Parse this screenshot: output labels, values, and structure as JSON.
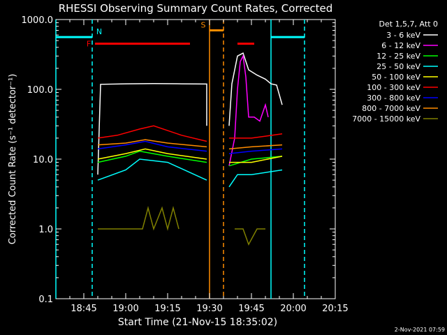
{
  "chart_data": {
    "type": "line",
    "title": "RHESSI Observing Summary Count Rates, Corrected",
    "xlabel": "Start Time (21-Nov-15 18:35:02)",
    "ylabel": "Corrected Count Rate (s⁻¹ detector⁻¹)",
    "y_scale": "log",
    "ylim": [
      0.1,
      1000.0
    ],
    "xlim": [
      "18:35",
      "20:15"
    ],
    "y_ticks": [
      "0.1",
      "1.0",
      "10.0",
      "100.0",
      "1000.0"
    ],
    "x_ticks": [
      "18:45",
      "19:00",
      "19:15",
      "19:30",
      "19:45",
      "20:00",
      "20:15"
    ],
    "legend_title": "Det 1,5,7, Att 0",
    "legend_position": "right",
    "timestamp": "2-Nov-2021 07:59",
    "series": [
      {
        "name": "3 - 6 keV",
        "color": "#ffffff",
        "segments": [
          {
            "x": [
              "18:50",
              "18:51",
              "19:00",
              "19:10",
              "19:20",
              "19:29",
              "19:29"
            ],
            "y": [
              6,
              118,
              120,
              121,
              120,
              119,
              30
            ]
          },
          {
            "x": [
              "19:37",
              "19:38",
              "19:40",
              "19:42",
              "19:44",
              "19:47",
              "19:50",
              "19:52",
              "19:54",
              "19:56"
            ],
            "y": [
              30,
              120,
              300,
              330,
              190,
              160,
              140,
              120,
              115,
              60
            ]
          }
        ]
      },
      {
        "name": "6 - 12 keV",
        "color": "#ff00ff",
        "segments": [
          {
            "x": [
              "19:37",
              "19:39",
              "19:40",
              "19:41",
              "19:42",
              "19:43",
              "19:44",
              "19:46",
              "19:48",
              "19:50",
              "19:51"
            ],
            "y": [
              8,
              20,
              100,
              250,
              300,
              150,
              40,
              40,
              35,
              60,
              40
            ]
          }
        ]
      },
      {
        "name": "12 - 25 keV",
        "color": "#00ff00",
        "segments": [
          {
            "x": [
              "18:50",
              "19:00",
              "19:05",
              "19:15",
              "19:29"
            ],
            "y": [
              9,
              11,
              13,
              11,
              9
            ]
          },
          {
            "x": [
              "19:37",
              "19:45",
              "19:56"
            ],
            "y": [
              8,
              10,
              11
            ]
          }
        ]
      },
      {
        "name": "25 - 50 keV",
        "color": "#00ffff",
        "segments": [
          {
            "x": [
              "18:50",
              "19:00",
              "19:05",
              "19:15",
              "19:29"
            ],
            "y": [
              5,
              7,
              10,
              9,
              5
            ]
          },
          {
            "x": [
              "19:37",
              "19:40",
              "19:45",
              "19:56"
            ],
            "y": [
              4,
              6,
              6,
              7
            ]
          }
        ]
      },
      {
        "name": "50 - 100 keV",
        "color": "#ffff00",
        "segments": [
          {
            "x": [
              "18:50",
              "19:00",
              "19:07",
              "19:15",
              "19:29"
            ],
            "y": [
              10,
              12,
              14,
              12,
              10
            ]
          },
          {
            "x": [
              "19:37",
              "19:45",
              "19:56"
            ],
            "y": [
              9,
              9,
              11
            ]
          }
        ]
      },
      {
        "name": "100 - 300 keV",
        "color": "#ff0000",
        "segments": [
          {
            "x": [
              "18:50",
              "18:57",
              "19:05",
              "19:10",
              "19:20",
              "19:29"
            ],
            "y": [
              20,
              22,
              27,
              30,
              22,
              18
            ]
          },
          {
            "x": [
              "19:37",
              "19:45",
              "19:56"
            ],
            "y": [
              20,
              20,
              23
            ]
          }
        ]
      },
      {
        "name": "300 - 800 keV",
        "color": "#0000ff",
        "segments": [
          {
            "x": [
              "18:50",
              "19:00",
              "19:07",
              "19:15",
              "19:29"
            ],
            "y": [
              14,
              16,
              18,
              15,
              13
            ]
          },
          {
            "x": [
              "19:37",
              "19:45",
              "19:56"
            ],
            "y": [
              12,
              13,
              14
            ]
          }
        ]
      },
      {
        "name": "800 - 7000 keV",
        "color": "#ff8c00",
        "segments": [
          {
            "x": [
              "18:50",
              "19:00",
              "19:07",
              "19:15",
              "19:29"
            ],
            "y": [
              16,
              17,
              19,
              17,
              15
            ]
          },
          {
            "x": [
              "19:37",
              "19:45",
              "19:56"
            ],
            "y": [
              14,
              15,
              16
            ]
          }
        ]
      },
      {
        "name": "7000 - 15000 keV",
        "color": "#808000",
        "segments": [
          {
            "x": [
              "18:50",
              "18:56",
              "19:00",
              "19:06",
              "19:08",
              "19:10",
              "19:13",
              "19:15",
              "19:17",
              "19:19"
            ],
            "y": [
              1,
              1,
              1,
              1,
              2,
              1,
              2,
              1,
              2,
              1
            ]
          },
          {
            "x": [
              "19:39",
              "19:42",
              "19:44",
              "19:47",
              "19:50"
            ],
            "y": [
              1,
              1,
              0.6,
              1,
              1
            ]
          }
        ]
      }
    ],
    "flags": [
      {
        "label": "N",
        "color": "#00ffff",
        "y": 560,
        "lines": [
          {
            "x": [
              "18:35",
              "18:48"
            ]
          },
          {
            "x": [
              "19:52",
              "20:04"
            ]
          }
        ]
      },
      {
        "label": "F",
        "color": "#ff0000",
        "y": 450,
        "lines": [
          {
            "x": [
              "18:49",
              "19:23"
            ]
          },
          {
            "x": [
              "19:40",
              "19:46"
            ]
          }
        ]
      },
      {
        "label": "S",
        "color": "#ff8c00",
        "y": 700,
        "lines": [
          {
            "x": [
              "19:30",
              "19:35"
            ]
          }
        ]
      }
    ],
    "vlines": [
      {
        "x": "18:35",
        "color": "#00ffff",
        "style": "solid"
      },
      {
        "x": "18:48",
        "color": "#00ffff",
        "style": "dashed"
      },
      {
        "x": "19:30",
        "color": "#ff8c00",
        "style": "solid"
      },
      {
        "x": "19:35",
        "color": "#ff8c00",
        "style": "dashed"
      },
      {
        "x": "19:52",
        "color": "#00ffff",
        "style": "solid"
      },
      {
        "x": "20:04",
        "color": "#00ffff",
        "style": "dashed"
      }
    ]
  }
}
